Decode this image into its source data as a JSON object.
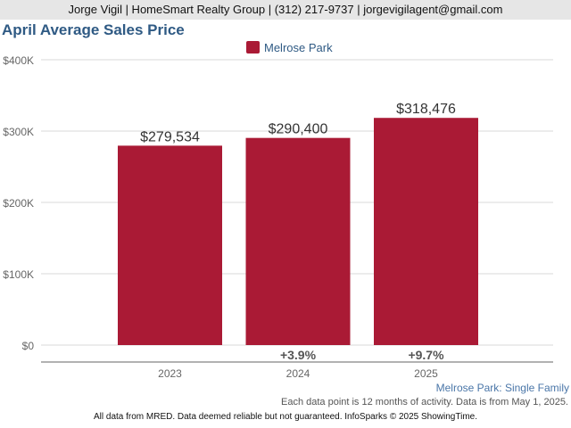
{
  "header": {
    "contact": "Jorge Vigil | HomeSmart Realty Group | (312) 217-9737 | jorgevigilagent@gmail.com"
  },
  "colors": {
    "bar": "#aa1a35",
    "title": "#2f5a84",
    "grid": "#d9d9d9",
    "axis": "#666666"
  },
  "chart_data": {
    "type": "bar",
    "title": "April Average Sales Price",
    "categories": [
      "2023",
      "2024",
      "2025"
    ],
    "series": [
      {
        "name": "Melrose Park",
        "values": [
          279534,
          290400,
          318476
        ],
        "value_labels": [
          "$279,534",
          "$290,400",
          "$318,476"
        ],
        "change_labels": [
          "",
          "+3.9%",
          "+9.7%"
        ]
      }
    ],
    "ylim": [
      0,
      400000
    ],
    "yticks": [
      0,
      100000,
      200000,
      300000,
      400000
    ],
    "ytick_labels": [
      "$0",
      "$100K",
      "$200K",
      "$300K",
      "$400K"
    ],
    "grid": true,
    "legend_position": "top-center",
    "subtitle": "Melrose Park: Single Family"
  },
  "footer": {
    "note": "Each data point is 12 months of activity. Data is from May 1, 2025.",
    "credit": "All data from MRED. Data deemed reliable but not guaranteed. InfoSparks © 2025 ShowingTime."
  }
}
